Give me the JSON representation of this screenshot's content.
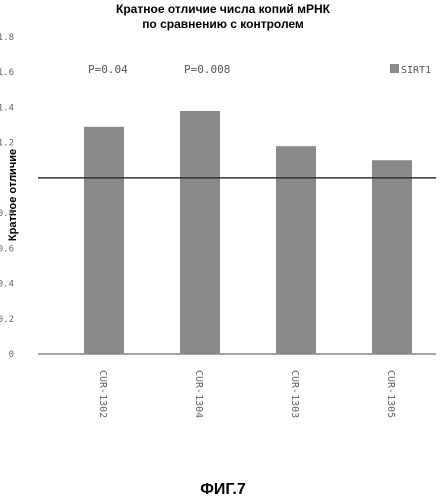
{
  "chart_data": {
    "type": "bar",
    "title_lines": [
      "Кратное отличие числа копий мРНК",
      "по сравнению с контролем"
    ],
    "ylabel": "Кратное отличие",
    "categories": [
      "CUR-1302",
      "CUR-1304",
      "CUR-1303",
      "CUR-1305"
    ],
    "series": [
      {
        "name": "SIRT1",
        "values": [
          1.29,
          1.38,
          1.18,
          1.1
        ]
      }
    ],
    "ylim": [
      0,
      1.8
    ],
    "yticks": [
      "0",
      "0.2",
      "0.4",
      "0.6",
      "0.8",
      "1",
      "1.2",
      "1.4",
      "1.6",
      "1.8"
    ],
    "reference_line": 1,
    "annotations": [
      {
        "category": "CUR-1302",
        "text": "P=0.04"
      },
      {
        "category": "CUR-1304",
        "text": "P=0.008"
      }
    ],
    "legend_position": "top-right",
    "grid": false,
    "bar_color": "#8a8a8a"
  },
  "figure_caption": "ФИГ.7"
}
